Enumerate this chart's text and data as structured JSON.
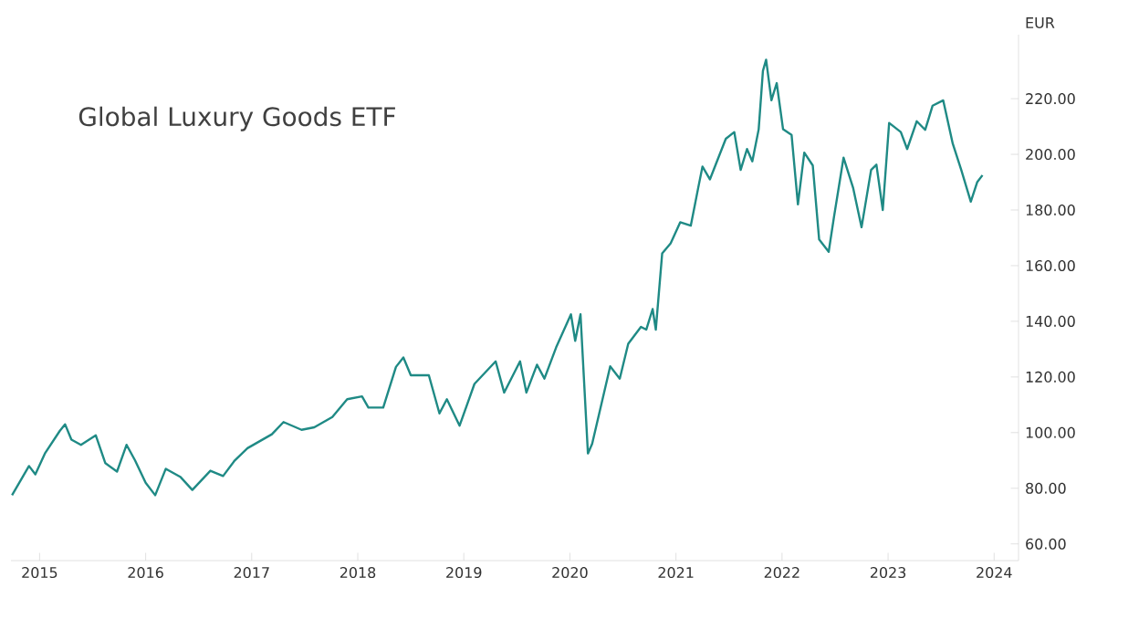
{
  "chart_data": {
    "type": "line",
    "title": "Global Luxury Goods ETF",
    "ylabel": "EUR",
    "x": [
      2014.74,
      2014.9,
      2014.96,
      2015.05,
      2015.19,
      2015.24,
      2015.3,
      2015.39,
      2015.53,
      2015.62,
      2015.73,
      2015.82,
      2015.9,
      2016.0,
      2016.09,
      2016.19,
      2016.33,
      2016.44,
      2016.61,
      2016.73,
      2016.84,
      2016.96,
      2017.19,
      2017.3,
      2017.47,
      2017.59,
      2017.76,
      2017.9,
      2018.04,
      2018.1,
      2018.24,
      2018.36,
      2018.43,
      2018.5,
      2018.67,
      2018.77,
      2018.84,
      2018.96,
      2019.1,
      2019.3,
      2019.38,
      2019.53,
      2019.59,
      2019.69,
      2019.76,
      2019.87,
      2020.01,
      2020.05,
      2020.1,
      2020.17,
      2020.21,
      2020.38,
      2020.47,
      2020.55,
      2020.67,
      2020.72,
      2020.78,
      2020.81,
      2020.87,
      2020.95,
      2021.04,
      2021.14,
      2021.21,
      2021.25,
      2021.32,
      2021.47,
      2021.55,
      2021.61,
      2021.67,
      2021.72,
      2021.78,
      2021.82,
      2021.85,
      2021.9,
      2021.95,
      2022.01,
      2022.09,
      2022.15,
      2022.21,
      2022.29,
      2022.35,
      2022.44,
      2022.49,
      2022.58,
      2022.67,
      2022.75,
      2022.84,
      2022.89,
      2022.95,
      2023.01,
      2023.12,
      2023.18,
      2023.27,
      2023.35,
      2023.42,
      2023.52,
      2023.61,
      2023.69,
      2023.78,
      2023.84,
      2023.89
    ],
    "series": [
      {
        "color": "#1f8a85",
        "values": [
          77.5,
          88,
          85,
          92.5,
          100.6,
          103,
          97.5,
          95.6,
          99,
          89,
          86,
          95.6,
          90,
          82,
          77.5,
          87,
          84,
          79.4,
          86.3,
          84.4,
          90,
          94.4,
          99.4,
          103.8,
          101,
          101.9,
          105.6,
          112,
          113,
          109,
          109,
          123.6,
          127,
          120.6,
          120.6,
          106.9,
          112,
          102.5,
          117.5,
          125.6,
          114.4,
          125.6,
          114.4,
          124.4,
          119.4,
          130.6,
          142.5,
          133,
          142.5,
          92.5,
          96,
          123.8,
          119.4,
          131.9,
          138,
          137,
          144.4,
          137,
          164.4,
          168,
          175.6,
          174.4,
          188,
          195.6,
          191,
          205.6,
          208,
          194.4,
          201.9,
          197.5,
          209,
          230,
          234,
          219.4,
          225.6,
          209,
          207,
          182,
          200.6,
          196,
          169.4,
          165,
          177.5,
          198.8,
          188,
          173.8,
          194.4,
          196.3,
          180,
          211.3,
          208,
          201.9,
          211.9,
          208.8,
          217.5,
          219.4,
          203.8,
          194.4,
          183,
          190,
          192.5
        ]
      }
    ],
    "xlim": [
      2014.73,
      2024.23
    ],
    "ylim": [
      54,
      243
    ],
    "xticks": [
      2015,
      2016,
      2017,
      2018,
      2019,
      2020,
      2021,
      2022,
      2023,
      2024
    ],
    "yticks": [
      {
        "value": 60,
        "label": "60.00"
      },
      {
        "value": 80,
        "label": "80.00"
      },
      {
        "value": 100,
        "label": "100.00"
      },
      {
        "value": 120,
        "label": "120.00"
      },
      {
        "value": 140,
        "label": "140.00"
      },
      {
        "value": 160,
        "label": "160.00"
      },
      {
        "value": 180,
        "label": "180.00"
      },
      {
        "value": 200,
        "label": "200.00"
      },
      {
        "value": 220,
        "label": "220.00"
      }
    ],
    "grid": false,
    "marker": "none",
    "line_style": "solid"
  }
}
